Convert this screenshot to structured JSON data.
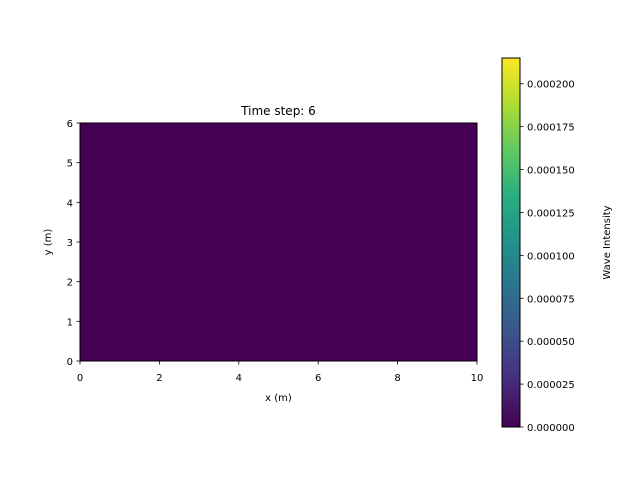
{
  "chart_data": {
    "type": "heatmap",
    "title": "Time step: 6",
    "xlabel": "x (m)",
    "ylabel": "y (m)",
    "xlim": [
      0,
      10
    ],
    "ylim": [
      0,
      6
    ],
    "x_ticks": [
      "0",
      "2",
      "4",
      "6",
      "8",
      "10"
    ],
    "y_ticks": [
      "0",
      "1",
      "2",
      "3",
      "4",
      "5",
      "6"
    ],
    "x_tick_values": [
      0,
      2,
      4,
      6,
      8,
      10
    ],
    "y_tick_values": [
      0,
      1,
      2,
      3,
      4,
      5,
      6
    ],
    "colormap": "viridis",
    "field_color": "#440154",
    "colorbar": {
      "label": "Wave Intensity",
      "range": [
        0.0,
        0.000215
      ],
      "tick_values": [
        0.0,
        2.5e-05,
        5e-05,
        7.5e-05,
        0.0001,
        0.000125,
        0.00015,
        0.000175,
        0.0002
      ],
      "tick_labels": [
        "0.000000",
        "0.000025",
        "0.000050",
        "0.000075",
        "0.000100",
        "0.000125",
        "0.000150",
        "0.000175",
        "0.000200"
      ]
    },
    "grid": false
  }
}
